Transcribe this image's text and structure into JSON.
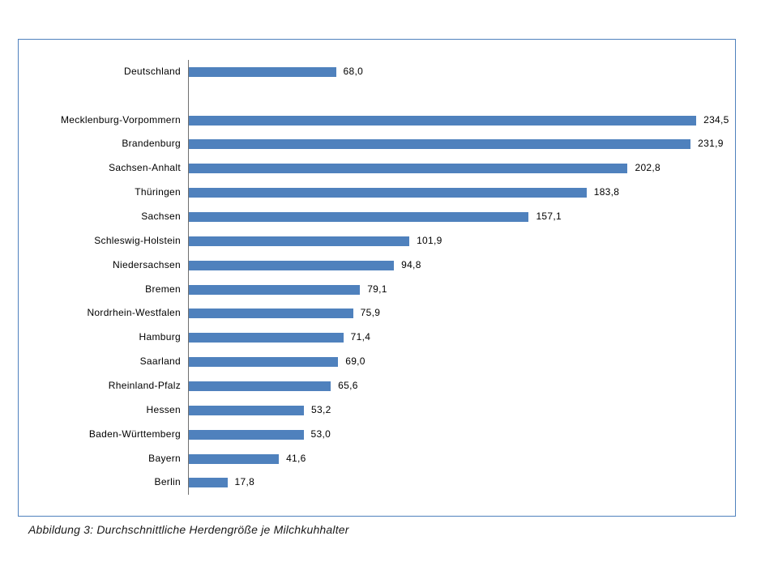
{
  "caption": "Abbildung 3: Durchschnittliche Herdengröße je Milchkuhhalter",
  "colors": {
    "bar": "#4f81bd",
    "frame_border": "#4f81bd",
    "axis_line": "#707070",
    "text": "#000000"
  },
  "chart_data": {
    "type": "bar",
    "orientation": "horizontal",
    "title": "",
    "caption": "Abbildung 3: Durchschnittliche Herdengröße je Milchkuhhalter",
    "categories": [
      "Deutschland",
      "",
      "Mecklenburg-Vorpommern",
      "Brandenburg",
      "Sachsen-Anhalt",
      "Thüringen",
      "Sachsen",
      "Schleswig-Holstein",
      "Niedersachsen",
      "Bremen",
      "Nordrhein-Westfalen",
      "Hamburg",
      "Saarland",
      "Rheinland-Pfalz",
      "Hessen",
      "Baden-Württemberg",
      "Bayern",
      "Berlin"
    ],
    "values": [
      68.0,
      null,
      234.5,
      231.9,
      202.8,
      183.8,
      157.1,
      101.9,
      94.8,
      79.1,
      75.9,
      71.4,
      69.0,
      65.6,
      53.2,
      53.0,
      41.6,
      17.8
    ],
    "value_labels": [
      "68,0",
      "",
      "234,5",
      "231,9",
      "202,8",
      "183,8",
      "157,1",
      "101,9",
      "94,8",
      "79,1",
      "75,9",
      "71,4",
      "69,0",
      "65,6",
      "53,2",
      "53,0",
      "41,6",
      "17,8"
    ],
    "xlim": [
      0,
      250
    ],
    "grid": false,
    "legend": false,
    "data_labels": "outside-end",
    "bar_color": "#4f81bd"
  }
}
